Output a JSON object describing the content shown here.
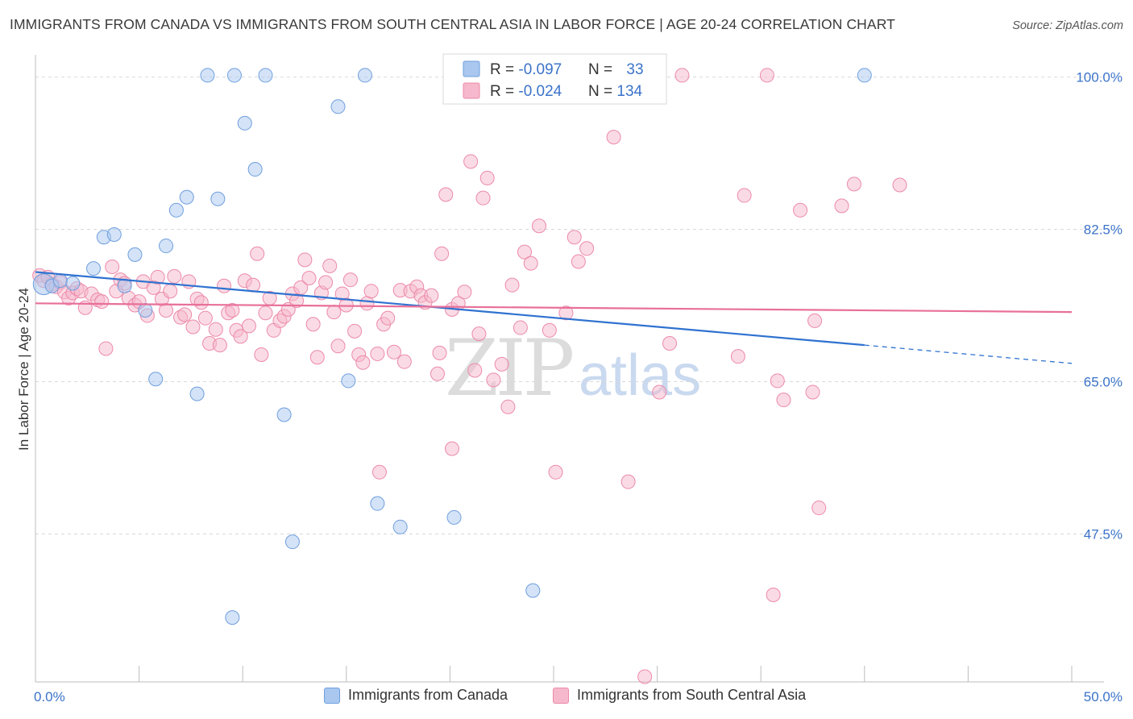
{
  "header": {
    "title": "IMMIGRANTS FROM CANADA VS IMMIGRANTS FROM SOUTH CENTRAL ASIA IN LABOR FORCE | AGE 20-24 CORRELATION CHART",
    "source": "Source: ZipAtlas.com"
  },
  "watermark": {
    "zip": "ZIP",
    "atlas": "atlas"
  },
  "legend_top": {
    "rows": [
      {
        "r_label": "R = ",
        "r_value": "-0.097",
        "n_label": "N = ",
        "n_value": "33"
      },
      {
        "r_label": "R = ",
        "r_value": "-0.024",
        "n_label": "N = ",
        "n_value": "134"
      }
    ]
  },
  "legend_bottom": {
    "items": [
      {
        "label": "Immigrants from Canada"
      },
      {
        "label": "Immigrants from South Central Asia"
      }
    ]
  },
  "colors": {
    "blue_fill": "#a9c7ef",
    "blue_stroke": "#6f9fde",
    "blue_line": "#2f72d0",
    "pink_fill": "#f6b8cc",
    "pink_stroke": "#ec8aa9",
    "pink_line": "#e8709a",
    "value_text": "#3b73c9",
    "grid": "#d9d9d9"
  },
  "chart_data": {
    "type": "scatter",
    "title": "IMMIGRANTS FROM CANADA VS IMMIGRANTS FROM SOUTH CENTRAL ASIA IN LABOR FORCE | AGE 20-24 CORRELATION CHART",
    "xlabel": "",
    "ylabel": "In Labor Force | Age 20-24",
    "xlim": [
      0,
      50
    ],
    "ylim": [
      30.5,
      102
    ],
    "x_tick_labels": [
      "0.0%",
      "50.0%"
    ],
    "y_ticks": [
      47.5,
      65.0,
      82.5,
      100.0
    ],
    "y_tick_labels": [
      "47.5%",
      "65.0%",
      "82.5%",
      "100.0%"
    ],
    "grid": "horizontal dashed",
    "legend_position": "top-center",
    "series": [
      {
        "name": "Immigrants from Canada",
        "r": -0.097,
        "n": 33,
        "trend": {
          "x": [
            0.0,
            40.0
          ],
          "y": [
            77.6,
            69.2
          ],
          "dashed_extension": {
            "x": [
              40.0,
              50.0
            ],
            "y": [
              69.2,
              67.1
            ]
          }
        },
        "points": [
          {
            "x": 0.4,
            "y": 76.2,
            "big": true
          },
          {
            "x": 0.8,
            "y": 76.0
          },
          {
            "x": 1.2,
            "y": 76.6
          },
          {
            "x": 1.8,
            "y": 76.3
          },
          {
            "x": 2.8,
            "y": 78.0
          },
          {
            "x": 3.3,
            "y": 81.6
          },
          {
            "x": 3.8,
            "y": 81.9
          },
          {
            "x": 4.3,
            "y": 76.0
          },
          {
            "x": 4.8,
            "y": 79.6
          },
          {
            "x": 5.3,
            "y": 73.2
          },
          {
            "x": 5.8,
            "y": 65.3
          },
          {
            "x": 6.3,
            "y": 80.6
          },
          {
            "x": 6.8,
            "y": 84.7
          },
          {
            "x": 7.3,
            "y": 86.2
          },
          {
            "x": 7.8,
            "y": 63.6
          },
          {
            "x": 8.3,
            "y": 100.2
          },
          {
            "x": 8.8,
            "y": 86.0
          },
          {
            "x": 9.6,
            "y": 100.2
          },
          {
            "x": 10.1,
            "y": 94.7
          },
          {
            "x": 10.6,
            "y": 89.4
          },
          {
            "x": 11.1,
            "y": 100.2
          },
          {
            "x": 12.0,
            "y": 61.2
          },
          {
            "x": 12.4,
            "y": 46.6
          },
          {
            "x": 14.6,
            "y": 96.6
          },
          {
            "x": 15.1,
            "y": 65.1
          },
          {
            "x": 15.9,
            "y": 100.2
          },
          {
            "x": 16.5,
            "y": 51.0
          },
          {
            "x": 17.6,
            "y": 48.3
          },
          {
            "x": 20.2,
            "y": 49.4
          },
          {
            "x": 24.0,
            "y": 41.0
          },
          {
            "x": 9.5,
            "y": 37.9
          },
          {
            "x": 40.0,
            "y": 100.2
          }
        ]
      },
      {
        "name": "Immigrants from South Central Asia",
        "r": -0.024,
        "n": 134,
        "trend": {
          "x": [
            0.0,
            50.0
          ],
          "y": [
            74.0,
            73.0
          ]
        },
        "points": [
          {
            "x": 0.2,
            "y": 77.2
          },
          {
            "x": 0.4,
            "y": 76.6
          },
          {
            "x": 0.6,
            "y": 77.0
          },
          {
            "x": 0.8,
            "y": 76.2
          },
          {
            "x": 1.0,
            "y": 75.9
          },
          {
            "x": 1.2,
            "y": 76.4
          },
          {
            "x": 1.4,
            "y": 75.3
          },
          {
            "x": 1.6,
            "y": 74.6
          },
          {
            "x": 1.8,
            "y": 75.2
          },
          {
            "x": 2.0,
            "y": 75.7
          },
          {
            "x": 2.2,
            "y": 75.4
          },
          {
            "x": 2.4,
            "y": 73.5
          },
          {
            "x": 2.7,
            "y": 75.1
          },
          {
            "x": 3.0,
            "y": 74.4
          },
          {
            "x": 3.2,
            "y": 74.2
          },
          {
            "x": 3.4,
            "y": 68.8
          },
          {
            "x": 3.7,
            "y": 78.2
          },
          {
            "x": 3.9,
            "y": 75.4
          },
          {
            "x": 4.1,
            "y": 76.7
          },
          {
            "x": 4.3,
            "y": 76.3
          },
          {
            "x": 4.5,
            "y": 74.6
          },
          {
            "x": 4.8,
            "y": 73.8
          },
          {
            "x": 5.0,
            "y": 74.2
          },
          {
            "x": 5.2,
            "y": 76.5
          },
          {
            "x": 5.4,
            "y": 72.6
          },
          {
            "x": 5.7,
            "y": 75.8
          },
          {
            "x": 5.9,
            "y": 77.0
          },
          {
            "x": 6.1,
            "y": 74.5
          },
          {
            "x": 6.3,
            "y": 73.2
          },
          {
            "x": 6.5,
            "y": 75.4
          },
          {
            "x": 6.7,
            "y": 77.1
          },
          {
            "x": 7.0,
            "y": 72.4
          },
          {
            "x": 7.2,
            "y": 72.7
          },
          {
            "x": 7.4,
            "y": 76.5
          },
          {
            "x": 7.6,
            "y": 71.3
          },
          {
            "x": 7.8,
            "y": 74.5
          },
          {
            "x": 8.0,
            "y": 74.1
          },
          {
            "x": 8.2,
            "y": 72.3
          },
          {
            "x": 8.4,
            "y": 69.4
          },
          {
            "x": 8.7,
            "y": 71.0
          },
          {
            "x": 8.9,
            "y": 69.2
          },
          {
            "x": 9.1,
            "y": 76.0
          },
          {
            "x": 9.3,
            "y": 72.9
          },
          {
            "x": 9.5,
            "y": 73.2
          },
          {
            "x": 9.7,
            "y": 70.9
          },
          {
            "x": 9.9,
            "y": 70.2
          },
          {
            "x": 10.1,
            "y": 76.6
          },
          {
            "x": 10.3,
            "y": 71.4
          },
          {
            "x": 10.5,
            "y": 76.1
          },
          {
            "x": 10.7,
            "y": 79.7
          },
          {
            "x": 10.9,
            "y": 68.1
          },
          {
            "x": 11.1,
            "y": 72.9
          },
          {
            "x": 11.3,
            "y": 74.6
          },
          {
            "x": 11.5,
            "y": 70.9
          },
          {
            "x": 11.8,
            "y": 72.0
          },
          {
            "x": 12.0,
            "y": 72.5
          },
          {
            "x": 12.2,
            "y": 73.3
          },
          {
            "x": 12.4,
            "y": 75.1
          },
          {
            "x": 12.6,
            "y": 74.3
          },
          {
            "x": 12.8,
            "y": 75.8
          },
          {
            "x": 13.0,
            "y": 79.0
          },
          {
            "x": 13.2,
            "y": 76.9
          },
          {
            "x": 13.4,
            "y": 71.6
          },
          {
            "x": 13.6,
            "y": 67.8
          },
          {
            "x": 13.8,
            "y": 75.2
          },
          {
            "x": 14.0,
            "y": 76.4
          },
          {
            "x": 14.2,
            "y": 78.3
          },
          {
            "x": 14.4,
            "y": 73.0
          },
          {
            "x": 14.6,
            "y": 69.1
          },
          {
            "x": 14.8,
            "y": 75.1
          },
          {
            "x": 15.0,
            "y": 73.8
          },
          {
            "x": 15.2,
            "y": 76.7
          },
          {
            "x": 15.4,
            "y": 70.8
          },
          {
            "x": 15.6,
            "y": 68.1
          },
          {
            "x": 15.8,
            "y": 67.2
          },
          {
            "x": 16.0,
            "y": 74.0
          },
          {
            "x": 16.2,
            "y": 75.4
          },
          {
            "x": 16.5,
            "y": 68.2
          },
          {
            "x": 16.8,
            "y": 71.6
          },
          {
            "x": 17.0,
            "y": 72.3
          },
          {
            "x": 17.3,
            "y": 68.4
          },
          {
            "x": 17.6,
            "y": 75.5
          },
          {
            "x": 17.8,
            "y": 67.3
          },
          {
            "x": 18.1,
            "y": 75.4
          },
          {
            "x": 18.4,
            "y": 75.9
          },
          {
            "x": 18.6,
            "y": 74.9
          },
          {
            "x": 18.8,
            "y": 74.1
          },
          {
            "x": 19.1,
            "y": 74.9
          },
          {
            "x": 19.4,
            "y": 65.9
          },
          {
            "x": 19.5,
            "y": 68.3
          },
          {
            "x": 19.6,
            "y": 79.7
          },
          {
            "x": 19.8,
            "y": 86.5
          },
          {
            "x": 20.1,
            "y": 73.3
          },
          {
            "x": 20.4,
            "y": 74.0
          },
          {
            "x": 20.7,
            "y": 75.3
          },
          {
            "x": 21.0,
            "y": 90.3
          },
          {
            "x": 21.2,
            "y": 66.3
          },
          {
            "x": 21.4,
            "y": 70.5
          },
          {
            "x": 21.6,
            "y": 86.1
          },
          {
            "x": 21.8,
            "y": 88.4
          },
          {
            "x": 22.1,
            "y": 65.2
          },
          {
            "x": 22.5,
            "y": 67.0
          },
          {
            "x": 22.8,
            "y": 62.1
          },
          {
            "x": 23.0,
            "y": 76.1
          },
          {
            "x": 23.4,
            "y": 71.2
          },
          {
            "x": 23.6,
            "y": 79.9
          },
          {
            "x": 23.9,
            "y": 78.6
          },
          {
            "x": 24.3,
            "y": 82.9
          },
          {
            "x": 24.8,
            "y": 70.9
          },
          {
            "x": 25.1,
            "y": 54.6
          },
          {
            "x": 25.6,
            "y": 72.9
          },
          {
            "x": 26.0,
            "y": 81.6
          },
          {
            "x": 26.2,
            "y": 78.8
          },
          {
            "x": 26.6,
            "y": 80.3
          },
          {
            "x": 27.9,
            "y": 93.1
          },
          {
            "x": 28.6,
            "y": 53.5
          },
          {
            "x": 29.4,
            "y": 31.1
          },
          {
            "x": 30.1,
            "y": 63.8
          },
          {
            "x": 30.6,
            "y": 69.4
          },
          {
            "x": 31.2,
            "y": 100.2
          },
          {
            "x": 33.9,
            "y": 67.9
          },
          {
            "x": 34.2,
            "y": 86.4
          },
          {
            "x": 35.3,
            "y": 100.2
          },
          {
            "x": 35.6,
            "y": 40.5
          },
          {
            "x": 35.8,
            "y": 65.1
          },
          {
            "x": 36.1,
            "y": 62.9
          },
          {
            "x": 36.9,
            "y": 84.7
          },
          {
            "x": 37.5,
            "y": 63.8
          },
          {
            "x": 37.6,
            "y": 72.0
          },
          {
            "x": 37.8,
            "y": 50.5
          },
          {
            "x": 38.9,
            "y": 85.2
          },
          {
            "x": 39.5,
            "y": 87.7
          },
          {
            "x": 41.7,
            "y": 87.6
          },
          {
            "x": 20.1,
            "y": 57.3
          },
          {
            "x": 16.6,
            "y": 54.6
          }
        ]
      }
    ]
  }
}
